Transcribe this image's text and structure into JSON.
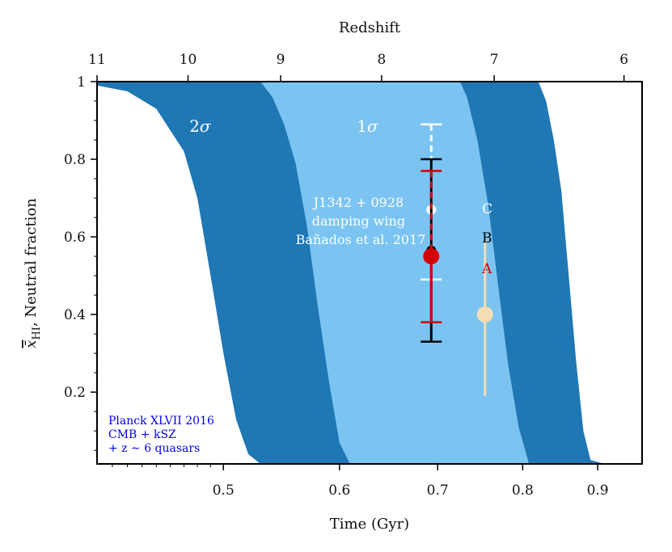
{
  "chart_data": {
    "type": "area",
    "title": "",
    "xlabel": "Time (Gyr)",
    "xlabel_top": "Redshift",
    "ylabel_var": "x̄",
    "ylabel_sub": "HI",
    "ylabel_rest": ", Neutral fraction",
    "x_scale": "log",
    "xlim": [
      0.41,
      0.965
    ],
    "ylim": [
      0.015,
      1.0
    ],
    "x_ticks": [
      0.5,
      0.6,
      0.7,
      0.8,
      0.9
    ],
    "x_tick_labels": [
      "0.5",
      "0.6",
      "0.7",
      "0.8",
      "0.9"
    ],
    "y_ticks": [
      0.2,
      0.4,
      0.6,
      0.8,
      1.0
    ],
    "y_tick_labels": [
      "0.2",
      "0.4",
      "0.6",
      "0.8",
      "1"
    ],
    "redshift_ticks": [
      {
        "label": "11",
        "t": 0.41
      },
      {
        "label": "10",
        "t": 0.473
      },
      {
        "label": "9",
        "t": 0.547
      },
      {
        "label": "8",
        "t": 0.641
      },
      {
        "label": "7",
        "t": 0.765
      },
      {
        "label": "6",
        "t": 0.938
      }
    ],
    "bands": [
      {
        "name": "2σ",
        "color": "#1f77b4",
        "left_edge": [
          [
            0.41,
            0.99
          ],
          [
            0.43,
            0.975
          ],
          [
            0.45,
            0.93
          ],
          [
            0.47,
            0.82
          ],
          [
            0.48,
            0.7
          ],
          [
            0.49,
            0.5
          ],
          [
            0.5,
            0.3
          ],
          [
            0.51,
            0.13
          ],
          [
            0.52,
            0.04
          ],
          [
            0.53,
            0.015
          ]
        ],
        "right_edge": [
          [
            0.82,
            1.0
          ],
          [
            0.83,
            0.95
          ],
          [
            0.84,
            0.85
          ],
          [
            0.85,
            0.72
          ],
          [
            0.86,
            0.5
          ],
          [
            0.87,
            0.28
          ],
          [
            0.88,
            0.1
          ],
          [
            0.89,
            0.025
          ],
          [
            0.91,
            0.015
          ]
        ]
      },
      {
        "name": "1σ",
        "color": "#7bc4f2",
        "left_edge": [
          [
            0.53,
            1.0
          ],
          [
            0.54,
            0.96
          ],
          [
            0.55,
            0.89
          ],
          [
            0.56,
            0.79
          ],
          [
            0.57,
            0.63
          ],
          [
            0.58,
            0.42
          ],
          [
            0.59,
            0.23
          ],
          [
            0.6,
            0.07
          ],
          [
            0.61,
            0.015
          ]
        ],
        "right_edge": [
          [
            0.725,
            1.0
          ],
          [
            0.733,
            0.96
          ],
          [
            0.745,
            0.85
          ],
          [
            0.758,
            0.68
          ],
          [
            0.77,
            0.47
          ],
          [
            0.782,
            0.27
          ],
          [
            0.795,
            0.11
          ],
          [
            0.808,
            0.015
          ]
        ]
      }
    ],
    "band_labels": [
      {
        "text_var": "σ",
        "prefix": "2",
        "t": 0.482,
        "y": 0.885
      },
      {
        "text_var": "σ",
        "prefix": "1",
        "t": 0.627,
        "y": 0.885
      }
    ],
    "points": [
      {
        "name": "C",
        "t": 0.693,
        "y": 0.67,
        "ylo": 0.49,
        "yhi": 0.89,
        "color": "#ffffff",
        "dashed_upper": true
      },
      {
        "name": "B",
        "t": 0.693,
        "y": 0.565,
        "ylo": 0.33,
        "yhi": 0.8,
        "color": "#000000"
      },
      {
        "name": "A",
        "t": 0.693,
        "y": 0.55,
        "ylo": 0.38,
        "yhi": 0.77,
        "color": "#d40000",
        "dashed_upper": true
      },
      {
        "name": "",
        "t": 0.754,
        "y": 0.4,
        "ylo": 0.19,
        "yhi": 0.59,
        "color": "#f4ddb4"
      }
    ],
    "point_label_colors": {
      "A": "#d40000",
      "B": "#000000",
      "C": "#ffffff"
    },
    "annotation": [
      "J1342 + 0928",
      "damping wing",
      "Bañados et al. 2017"
    ],
    "legend_text": [
      "Planck XLVII 2016",
      "CMB + kSZ",
      "+ z ∼ 6 quasars"
    ],
    "legend_color": "#0000ee"
  }
}
